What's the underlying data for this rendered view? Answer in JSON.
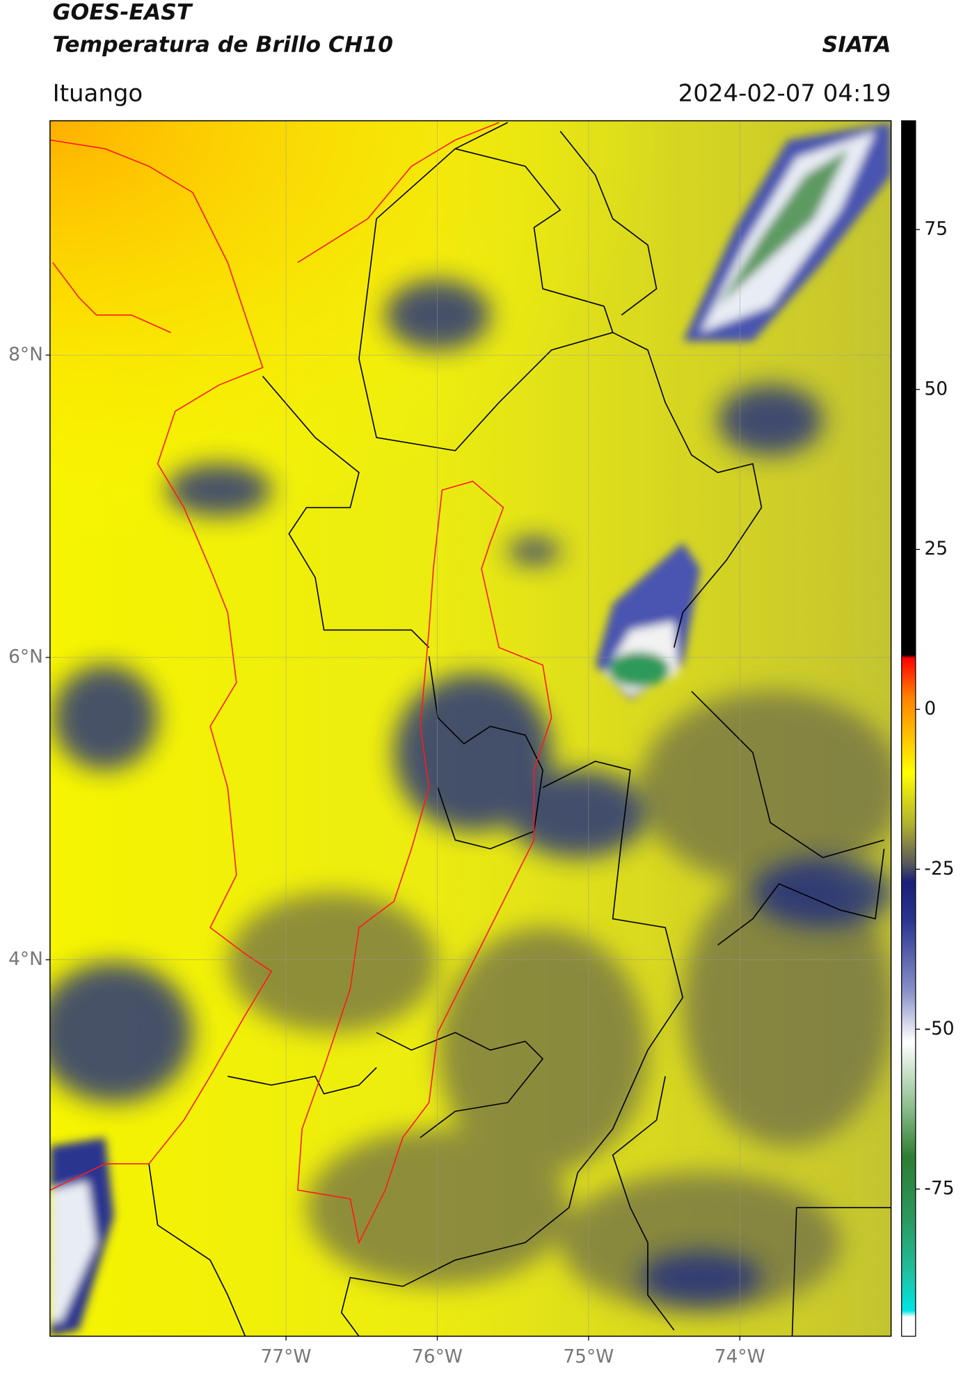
{
  "header": {
    "title": "GOES-EAST",
    "subtitle": "Temperatura de Brillo CH10",
    "source": "SIATA",
    "location": "Ituango",
    "datetime": "2024-02-07 04:19"
  },
  "map": {
    "lat_range": [
      1.51,
      9.55
    ],
    "lon_range": [
      -78.56,
      -73.0
    ],
    "grid": true,
    "lat_ticks": [
      {
        "value": 8,
        "label": "8°N"
      },
      {
        "value": 6,
        "label": "6°N"
      },
      {
        "value": 4,
        "label": "4°N"
      }
    ],
    "lon_ticks": [
      {
        "value": -77,
        "label": "77°W"
      },
      {
        "value": -76,
        "label": "76°W"
      },
      {
        "value": -75,
        "label": "75°W"
      },
      {
        "value": -74,
        "label": "74°W"
      }
    ]
  },
  "colorbar": {
    "range": [
      -98,
      92
    ],
    "ticks": [
      75,
      50,
      25,
      0,
      -25,
      -50,
      -75
    ],
    "stops": [
      {
        "value": -98,
        "color": "#ffffff"
      },
      {
        "value": -95,
        "color": "#ffffff"
      },
      {
        "value": -94,
        "color": "#00e5e5"
      },
      {
        "value": -88,
        "color": "#20c0a0"
      },
      {
        "value": -80,
        "color": "#2a9a60"
      },
      {
        "value": -70,
        "color": "#2e7d32"
      },
      {
        "value": -62,
        "color": "#8fbf8f"
      },
      {
        "value": -52,
        "color": "#ffffff"
      },
      {
        "value": -44,
        "color": "#8890c8"
      },
      {
        "value": -33,
        "color": "#2a3590"
      },
      {
        "value": -27,
        "color": "#1a1f78"
      },
      {
        "value": -24,
        "color": "#5a5a5a"
      },
      {
        "value": -18,
        "color": "#b0b030"
      },
      {
        "value": -10,
        "color": "#ffff00"
      },
      {
        "value": -4,
        "color": "#ffc000"
      },
      {
        "value": 2,
        "color": "#ff8000"
      },
      {
        "value": 8,
        "color": "#ff0000"
      },
      {
        "value": 8.5,
        "color": "#000000"
      },
      {
        "value": 92,
        "color": "#000000"
      }
    ]
  }
}
